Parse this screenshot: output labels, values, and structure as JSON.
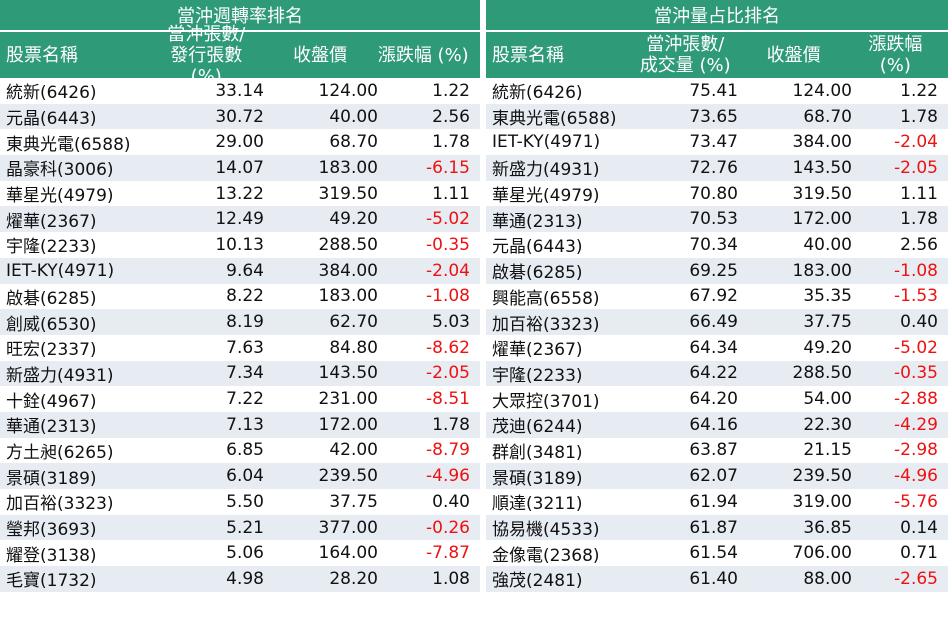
{
  "left": {
    "title": "當沖週轉率排名",
    "headers": [
      "股票名稱",
      "當沖張數/",
      "發行張數 (%)",
      "收盤價",
      "漲跌幅 (%)"
    ],
    "rows": [
      [
        "統新(6426)",
        "33.14",
        "124.00",
        "1.22"
      ],
      [
        "元晶(6443)",
        "30.72",
        "40.00",
        "2.56"
      ],
      [
        "東典光電(6588)",
        "29.00",
        "68.70",
        "1.78"
      ],
      [
        "晶豪科(3006)",
        "14.07",
        "183.00",
        "-6.15"
      ],
      [
        "華星光(4979)",
        "13.22",
        "319.50",
        "1.11"
      ],
      [
        "燿華(2367)",
        "12.49",
        "49.20",
        "-5.02"
      ],
      [
        "宇隆(2233)",
        "10.13",
        "288.50",
        "-0.35"
      ],
      [
        "IET-KY(4971)",
        "9.64",
        "384.00",
        "-2.04"
      ],
      [
        "啟碁(6285)",
        "8.22",
        "183.00",
        "-1.08"
      ],
      [
        "創威(6530)",
        "8.19",
        "62.70",
        "5.03"
      ],
      [
        "旺宏(2337)",
        "7.63",
        "84.80",
        "-8.62"
      ],
      [
        "新盛力(4931)",
        "7.34",
        "143.50",
        "-2.05"
      ],
      [
        "十銓(4967)",
        "7.22",
        "231.00",
        "-8.51"
      ],
      [
        "華通(2313)",
        "7.13",
        "172.00",
        "1.78"
      ],
      [
        "方土昶(6265)",
        "6.85",
        "42.00",
        "-8.79"
      ],
      [
        "景碩(3189)",
        "6.04",
        "239.50",
        "-4.96"
      ],
      [
        "加百裕(3323)",
        "5.50",
        "37.75",
        "0.40"
      ],
      [
        "瑩邦(3693)",
        "5.21",
        "377.00",
        "-0.26"
      ],
      [
        "耀登(3138)",
        "5.06",
        "164.00",
        "-7.87"
      ],
      [
        "毛寶(1732)",
        "4.98",
        "28.20",
        "1.08"
      ]
    ]
  },
  "right": {
    "title": "當沖量占比排名",
    "headers": [
      "股票名稱",
      "當沖張數/",
      "成交量 (%)",
      "收盤價",
      "漲跌幅 (%)"
    ],
    "rows": [
      [
        "統新(6426)",
        "75.41",
        "124.00",
        "1.22"
      ],
      [
        "東典光電(6588)",
        "73.65",
        "68.70",
        "1.78"
      ],
      [
        "IET-KY(4971)",
        "73.47",
        "384.00",
        "-2.04"
      ],
      [
        "新盛力(4931)",
        "72.76",
        "143.50",
        "-2.05"
      ],
      [
        "華星光(4979)",
        "70.80",
        "319.50",
        "1.11"
      ],
      [
        "華通(2313)",
        "70.53",
        "172.00",
        "1.78"
      ],
      [
        "元晶(6443)",
        "70.34",
        "40.00",
        "2.56"
      ],
      [
        "啟碁(6285)",
        "69.25",
        "183.00",
        "-1.08"
      ],
      [
        "興能高(6558)",
        "67.92",
        "35.35",
        "-1.53"
      ],
      [
        "加百裕(3323)",
        "66.49",
        "37.75",
        "0.40"
      ],
      [
        "燿華(2367)",
        "64.34",
        "49.20",
        "-5.02"
      ],
      [
        "宇隆(2233)",
        "64.22",
        "288.50",
        "-0.35"
      ],
      [
        "大眾控(3701)",
        "64.20",
        "54.00",
        "-2.88"
      ],
      [
        "茂迪(6244)",
        "64.16",
        "22.30",
        "-4.29"
      ],
      [
        "群創(3481)",
        "63.87",
        "21.15",
        "-2.98"
      ],
      [
        "景碩(3189)",
        "62.07",
        "239.50",
        "-4.96"
      ],
      [
        "順達(3211)",
        "61.94",
        "319.00",
        "-5.76"
      ],
      [
        "協易機(4533)",
        "61.87",
        "36.85",
        "0.14"
      ],
      [
        "金像電(2368)",
        "61.54",
        "706.00",
        "0.71"
      ],
      [
        "強茂(2481)",
        "61.40",
        "88.00",
        "-2.65"
      ]
    ]
  },
  "colors": {
    "header_bg": "#2f9a78",
    "stripe": "#e7ecf3",
    "negative": "#ee1111"
  }
}
